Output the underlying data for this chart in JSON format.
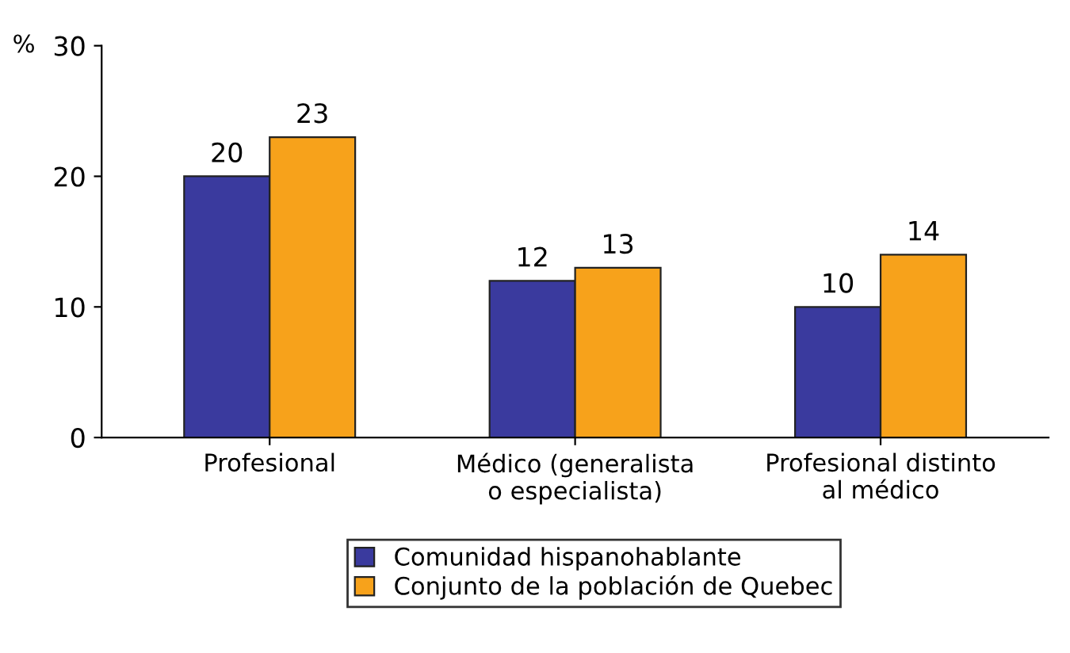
{
  "chart_data": {
    "type": "bar",
    "ylabel": "%",
    "categories": [
      "Profesional",
      "Médico (generalista\no especialista)",
      "Profesional distinto\nal médico"
    ],
    "series": [
      {
        "name": "Comunidad hispanohablante",
        "color": "#3a3a9e",
        "values": [
          20,
          12,
          10
        ]
      },
      {
        "name": "Conjunto de la población de Quebec",
        "color": "#f7a21b",
        "values": [
          23,
          13,
          14
        ]
      }
    ],
    "ylim": [
      0,
      30
    ],
    "yticks": [
      0,
      10,
      20,
      30
    ],
    "grid": false,
    "data_labels": true,
    "legend": "bottom"
  }
}
